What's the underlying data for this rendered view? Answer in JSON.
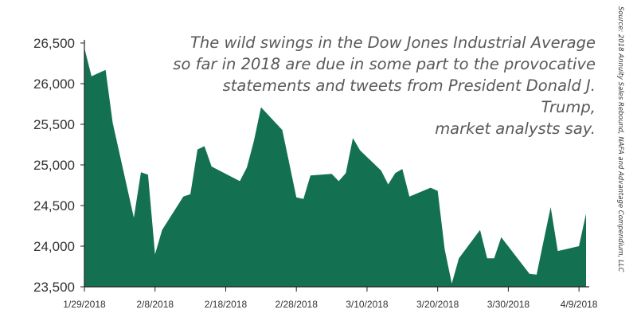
{
  "chart_data": {
    "type": "area",
    "title": "",
    "xlabel": "",
    "ylabel": "",
    "ylim": [
      23500,
      26500
    ],
    "grid": false,
    "legend": "none",
    "color": "#137152",
    "yticks": [
      23500,
      24000,
      24500,
      25000,
      25500,
      26000,
      26500
    ],
    "ytick_labels": [
      "23,500",
      "24,000",
      "24,500",
      "25,000",
      "25,500",
      "26,000",
      "26,500"
    ],
    "xticks": [
      "1/29/2018",
      "2/8/2018",
      "2/18/2018",
      "2/28/2018",
      "3/10/2018",
      "3/20/2018",
      "3/30/2018",
      "4/9/2018"
    ],
    "x": [
      "2018-01-29",
      "2018-01-30",
      "2018-02-01",
      "2018-02-02",
      "2018-02-05",
      "2018-02-06",
      "2018-02-07",
      "2018-02-08",
      "2018-02-09",
      "2018-02-12",
      "2018-02-13",
      "2018-02-14",
      "2018-02-15",
      "2018-02-16",
      "2018-02-20",
      "2018-02-21",
      "2018-02-22",
      "2018-02-23",
      "2018-02-26",
      "2018-02-27",
      "2018-02-28",
      "2018-03-01",
      "2018-03-02",
      "2018-03-05",
      "2018-03-06",
      "2018-03-07",
      "2018-03-08",
      "2018-03-09",
      "2018-03-12",
      "2018-03-13",
      "2018-03-14",
      "2018-03-15",
      "2018-03-16",
      "2018-03-19",
      "2018-03-20",
      "2018-03-21",
      "2018-03-22",
      "2018-03-23",
      "2018-03-26",
      "2018-03-27",
      "2018-03-28",
      "2018-03-29",
      "2018-04-02",
      "2018-04-03",
      "2018-04-04",
      "2018-04-05",
      "2018-04-06",
      "2018-04-09",
      "2018-04-10"
    ],
    "series": [
      {
        "values": [
          26440,
          26090,
          26170,
          25520,
          24350,
          24910,
          24880,
          23900,
          24200,
          24610,
          24640,
          25190,
          25230,
          24980,
          24800,
          24970,
          25300,
          25710,
          25430,
          25020,
          24600,
          24580,
          24870,
          24890,
          24800,
          24900,
          25330,
          25180,
          24930,
          24760,
          24900,
          24950,
          24610,
          24720,
          24680,
          23960,
          23540,
          23850,
          24200,
          23850,
          23850,
          24110,
          23660,
          23650,
          24070,
          24480,
          23940,
          24000,
          24400
        ]
      }
    ]
  },
  "annotation": {
    "line1": "The wild swings in the Dow Jones Industrial Average",
    "line2": "so far in 2018 are due in some part to the provocative",
    "line3": "statements and tweets from President Donald J. Trump,",
    "line4": "market analysts say."
  },
  "source": "Source: 2018 Annuity Sales Rebound, NAFA and Advantage Compendium, LLC"
}
